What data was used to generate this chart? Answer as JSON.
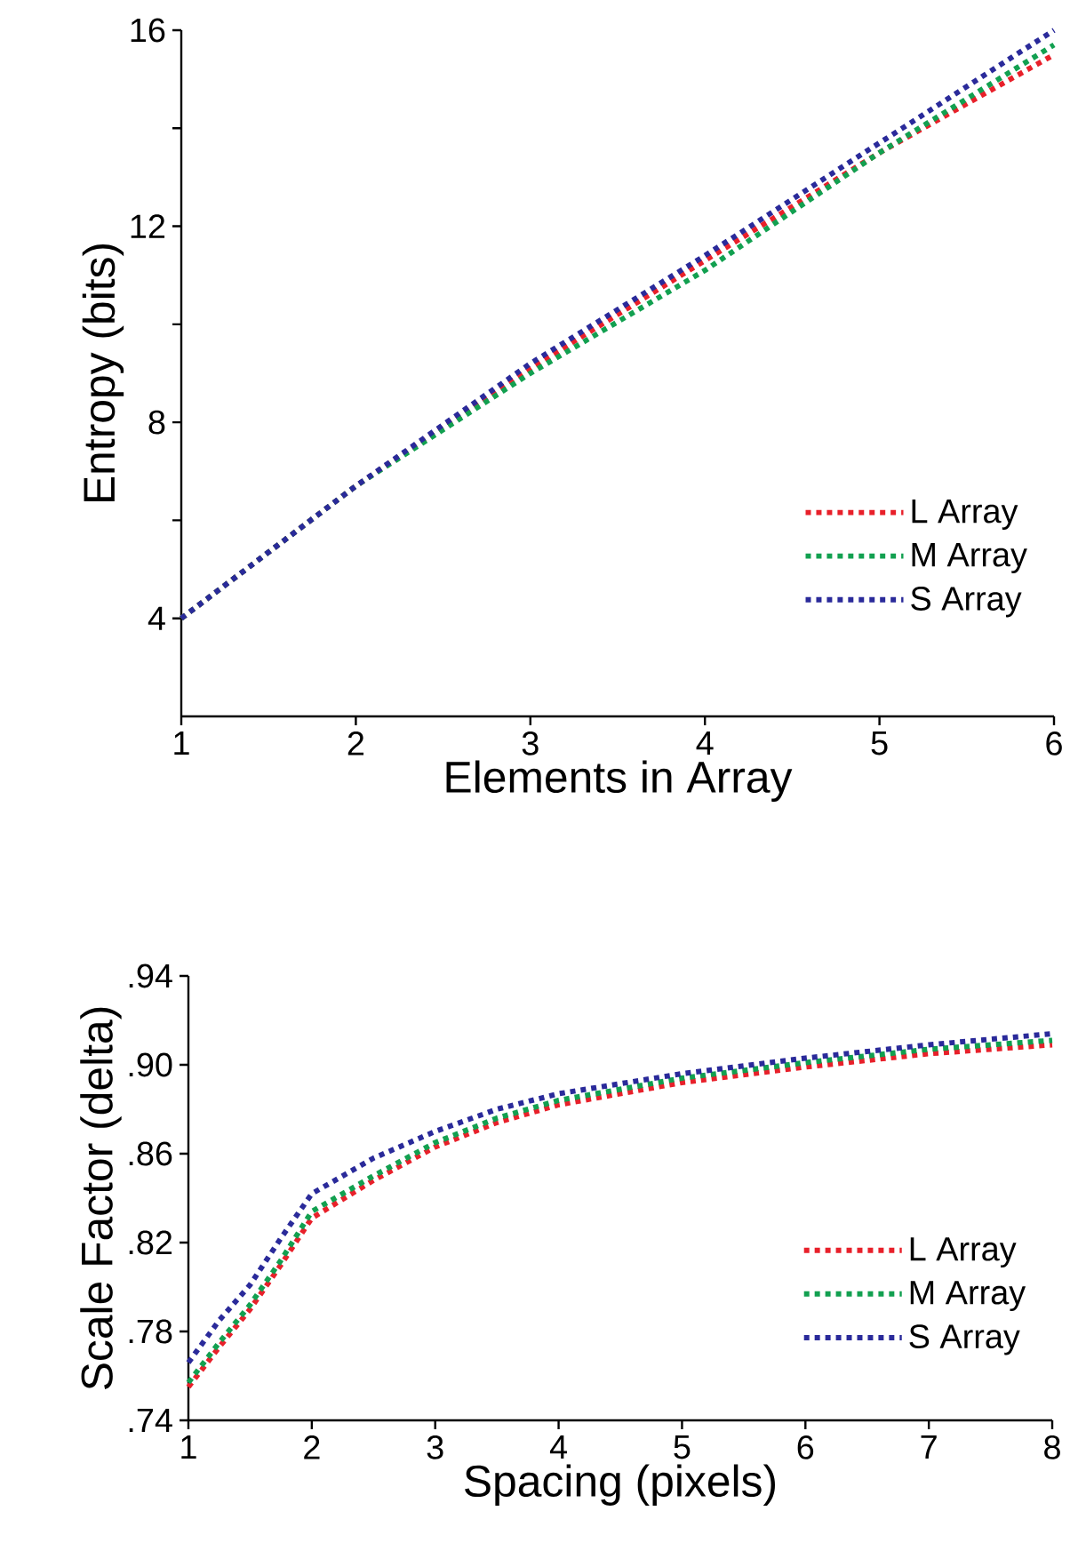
{
  "chart_data": [
    {
      "type": "line",
      "xlabel": "Elements in Array",
      "ylabel": "Entropy (bits)",
      "legend": "bottom right",
      "line_style": "dotted",
      "x": [
        1,
        2,
        3,
        4,
        5,
        6
      ],
      "series": [
        {
          "name": "L Array",
          "color": "#e8202a",
          "values": [
            4.0,
            6.7,
            9.1,
            11.3,
            13.5,
            15.5
          ]
        },
        {
          "name": "M Array",
          "color": "#12a050",
          "values": [
            4.0,
            6.7,
            9.0,
            11.1,
            13.5,
            15.7
          ]
        },
        {
          "name": "S Array",
          "color": "#2a2a9a",
          "values": [
            4.0,
            6.7,
            9.2,
            11.4,
            13.7,
            16.0
          ]
        }
      ],
      "xlim": [
        1,
        6
      ],
      "ylim": [
        2,
        16
      ],
      "xticks": [
        1,
        2,
        3,
        4,
        5,
        6
      ],
      "yticks": [
        4,
        {
          "value": 6,
          "label": null
        },
        8,
        {
          "value": 10,
          "label": null
        },
        12,
        {
          "value": 14,
          "label": null
        },
        16
      ]
    },
    {
      "type": "line",
      "xlabel": "Spacing (pixels)",
      "ylabel": "Scale Factor (delta)",
      "legend": "bottom right",
      "line_style": "dotted",
      "x": [
        1,
        1.25,
        1.5,
        1.75,
        2,
        2.5,
        3,
        3.5,
        4,
        5,
        6,
        7,
        8
      ],
      "series": [
        {
          "name": "L Array",
          "color": "#e8202a",
          "values": [
            0.755,
            0.773,
            0.79,
            0.81,
            0.831,
            0.848,
            0.863,
            0.874,
            0.882,
            0.892,
            0.899,
            0.905,
            0.909
          ]
        },
        {
          "name": "M Array",
          "color": "#12a050",
          "values": [
            0.757,
            0.775,
            0.792,
            0.812,
            0.834,
            0.85,
            0.865,
            0.876,
            0.884,
            0.894,
            0.901,
            0.907,
            0.911
          ]
        },
        {
          "name": "S Array",
          "color": "#2a2a9a",
          "values": [
            0.766,
            0.785,
            0.801,
            0.822,
            0.842,
            0.858,
            0.87,
            0.88,
            0.887,
            0.896,
            0.903,
            0.909,
            0.914
          ]
        }
      ],
      "xlim": [
        1,
        8
      ],
      "ylim": [
        0.74,
        0.94
      ],
      "xticks": [
        1,
        2,
        3,
        4,
        5,
        6,
        7,
        8
      ],
      "yticks": [
        {
          "value": 0.74,
          "label": ".74"
        },
        {
          "value": 0.78,
          "label": ".78"
        },
        {
          "value": 0.82,
          "label": ".82"
        },
        {
          "value": 0.86,
          "label": ".86"
        },
        {
          "value": 0.9,
          "label": ".90"
        },
        {
          "value": 0.94,
          "label": ".94"
        }
      ]
    }
  ]
}
